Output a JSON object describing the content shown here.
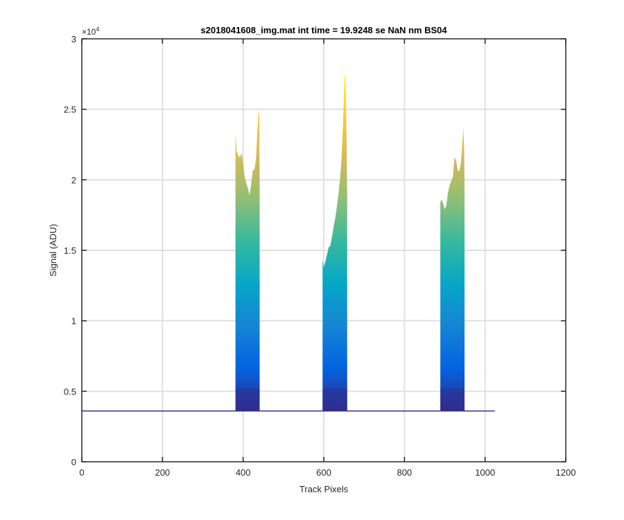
{
  "chart_data": {
    "type": "area",
    "title": "s2018041608_img.mat int time = 19.9248 se  NaN nm BS04",
    "xlabel": "Track Pixels",
    "ylabel": "Signal (ADU)",
    "xlim": [
      0,
      1200
    ],
    "ylim": [
      0,
      30000
    ],
    "x_ticks": [
      0,
      200,
      400,
      600,
      800,
      1000,
      1200
    ],
    "x_tick_labels": [
      "0",
      "200",
      "400",
      "600",
      "800",
      "1000",
      "1200"
    ],
    "y_ticks": [
      0,
      5000,
      10000,
      15000,
      20000,
      25000,
      30000
    ],
    "y_tick_labels": [
      "0",
      "0.5",
      "1",
      "1.5",
      "2",
      "2.5",
      "3"
    ],
    "y_exponent_base": "×10",
    "y_exponent_power": "4",
    "grid": true,
    "colormap": "parula",
    "baseline": 3600,
    "x_extent": [
      1,
      1024
    ],
    "peaks": [
      {
        "x_start": 381,
        "x_end": 441,
        "x": [
          381,
          384,
          388,
          392,
          396,
          400,
          404,
          408,
          412,
          416,
          420,
          424,
          428,
          432,
          436,
          438,
          440,
          441
        ],
        "y": [
          23300,
          22000,
          21700,
          21600,
          21900,
          21200,
          20200,
          19700,
          19400,
          18900,
          19700,
          20700,
          20700,
          21500,
          23800,
          25200,
          24000,
          19800
        ]
      },
      {
        "x_start": 597,
        "x_end": 658,
        "x": [
          597,
          600,
          604,
          608,
          612,
          616,
          620,
          624,
          628,
          632,
          636,
          640,
          644,
          648,
          650,
          652,
          654,
          656,
          658
        ],
        "y": [
          14300,
          13800,
          14200,
          14700,
          15200,
          15300,
          15900,
          16600,
          17200,
          18000,
          18900,
          20000,
          21500,
          24100,
          26300,
          27600,
          27200,
          24000,
          19000
        ]
      },
      {
        "x_start": 889,
        "x_end": 949,
        "x": [
          889,
          892,
          896,
          900,
          904,
          908,
          912,
          916,
          920,
          924,
          928,
          932,
          936,
          940,
          944,
          946,
          948,
          949
        ],
        "y": [
          18400,
          18600,
          18300,
          17900,
          18200,
          19100,
          19600,
          19900,
          20200,
          21600,
          21400,
          20700,
          20600,
          21200,
          22800,
          23700,
          22200,
          19500
        ]
      }
    ]
  },
  "colors": {
    "background": "#ffffff",
    "axes": "#262626",
    "grid": "#dfdfdf",
    "baseline_line": "#3d2f86",
    "parula_stops": [
      "#352a87",
      "#0363e1",
      "#1485d4",
      "#06a7c6",
      "#38b99e",
      "#92bf73",
      "#d9ba56",
      "#fcce2e",
      "#f9fb0e"
    ]
  }
}
